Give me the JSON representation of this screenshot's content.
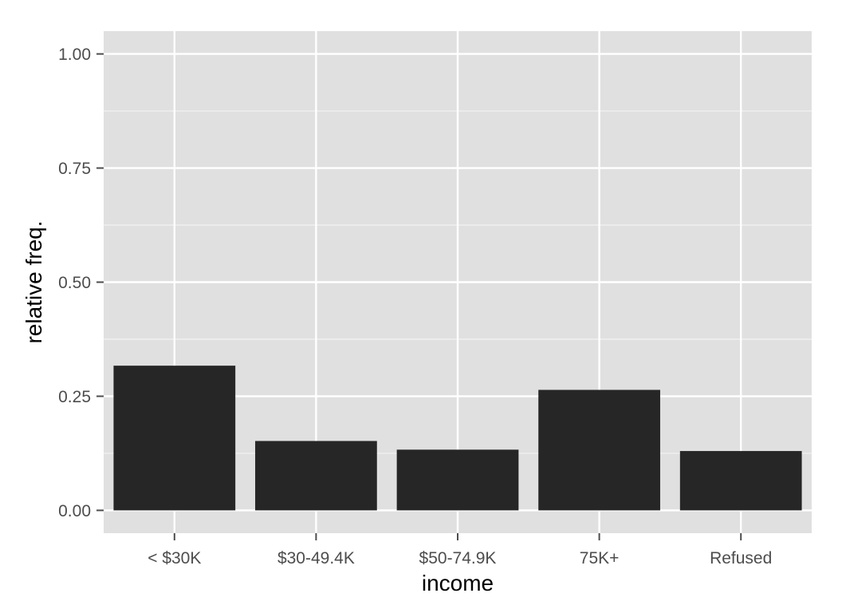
{
  "chart_data": {
    "type": "bar",
    "title": "",
    "xlabel": "income",
    "ylabel": "relative freq.",
    "categories": [
      "< $30K",
      "$30-49.4K",
      "$50-74.9K",
      "75K+",
      "Refused"
    ],
    "values": [
      0.317,
      0.152,
      0.133,
      0.264,
      0.13
    ],
    "ylim": [
      -0.05,
      1.05
    ],
    "yticks": [
      0.0,
      0.25,
      0.5,
      0.75,
      1.0
    ],
    "ytick_labels": [
      "0.00",
      "0.25",
      "0.50",
      "0.75",
      "1.00"
    ],
    "grid": true,
    "colors": {
      "panel": "#e0e0e0",
      "grid": "#ffffff",
      "bar": "#262626",
      "tick_text": "#4d4d4d",
      "tick_mark": "#4d4d4d"
    }
  }
}
